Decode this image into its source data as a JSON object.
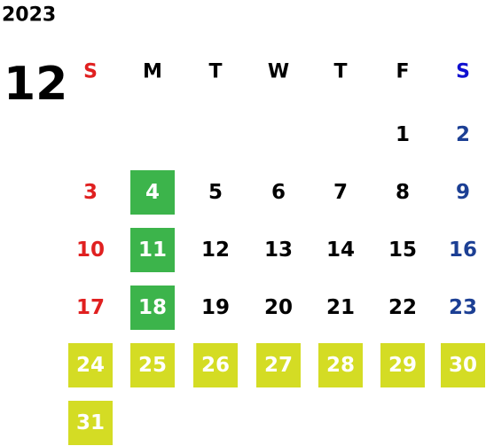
{
  "year": "2023",
  "month": "12",
  "weekdays": [
    "S",
    "M",
    "T",
    "W",
    "T",
    "F",
    "S"
  ],
  "weekday_colors": [
    "#e02020",
    "#000000",
    "#000000",
    "#000000",
    "#000000",
    "#000000",
    "#1010d0"
  ],
  "day_colors": [
    "#e02020",
    "#000000",
    "#000000",
    "#000000",
    "#000000",
    "#000000",
    "#1c3f94"
  ],
  "highlight_text_color": "#ffffff",
  "weeks": [
    [
      null,
      null,
      null,
      null,
      null,
      {
        "day": 1
      },
      {
        "day": 2
      }
    ],
    [
      {
        "day": 3
      },
      {
        "day": 4,
        "fill": "#3cb44b"
      },
      {
        "day": 5
      },
      {
        "day": 6
      },
      {
        "day": 7
      },
      {
        "day": 8
      },
      {
        "day": 9
      }
    ],
    [
      {
        "day": 10
      },
      {
        "day": 11,
        "fill": "#3cb44b"
      },
      {
        "day": 12
      },
      {
        "day": 13
      },
      {
        "day": 14
      },
      {
        "day": 15
      },
      {
        "day": 16
      }
    ],
    [
      {
        "day": 17
      },
      {
        "day": 18,
        "fill": "#3cb44b"
      },
      {
        "day": 19
      },
      {
        "day": 20
      },
      {
        "day": 21
      },
      {
        "day": 22
      },
      {
        "day": 23
      }
    ],
    [
      {
        "day": 24,
        "fill": "#d4dc24"
      },
      {
        "day": 25,
        "fill": "#d4dc24"
      },
      {
        "day": 26,
        "fill": "#d4dc24"
      },
      {
        "day": 27,
        "fill": "#d4dc24"
      },
      {
        "day": 28,
        "fill": "#d4dc24"
      },
      {
        "day": 29,
        "fill": "#d4dc24"
      },
      {
        "day": 30,
        "fill": "#d4dc24"
      }
    ],
    [
      {
        "day": 31,
        "fill": "#d4dc24"
      },
      null,
      null,
      null,
      null,
      null,
      null
    ]
  ]
}
